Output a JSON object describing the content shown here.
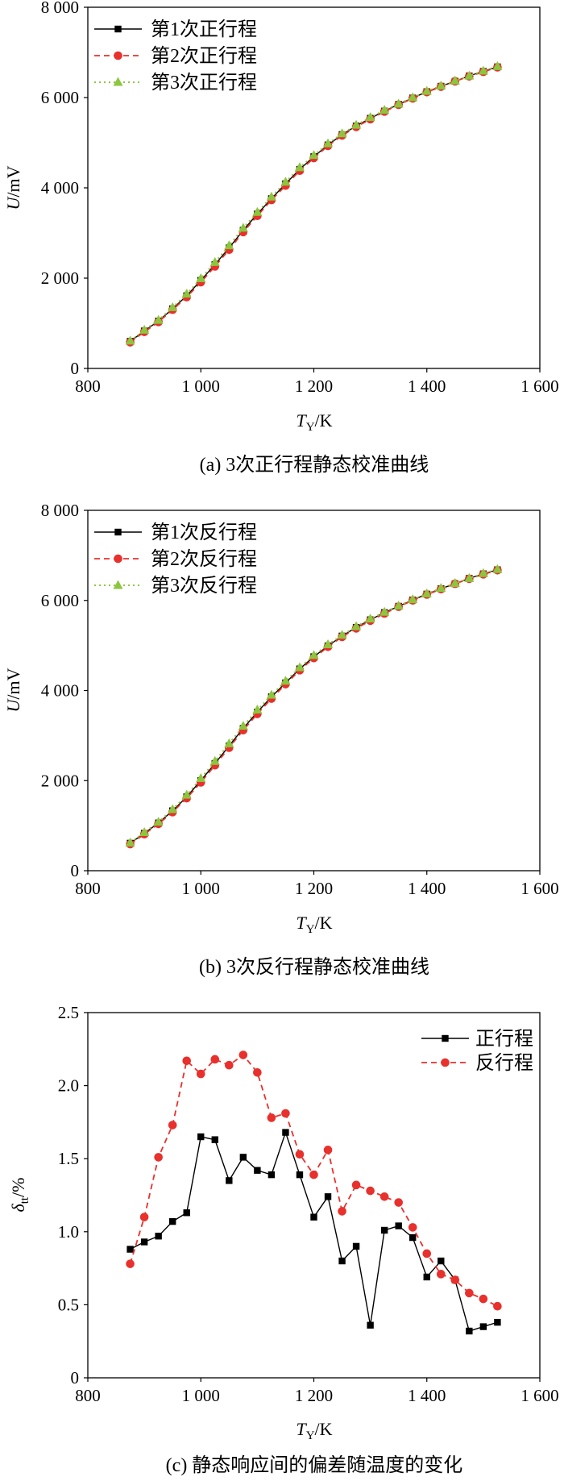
{
  "chart_data": [
    {
      "type": "line",
      "caption": "(a) 3次正行程静态校准曲线",
      "xlabel": {
        "main": "T",
        "sub": "Y",
        "rest": "/K"
      },
      "ylabel": {
        "main": "U",
        "rest": "/mV"
      },
      "xlim": [
        800,
        1600
      ],
      "ylim": [
        0,
        8000
      ],
      "x_ticks": [
        800,
        1000,
        1200,
        1400,
        1600
      ],
      "x_tick_labels": [
        "800",
        "1 000",
        "1 200",
        "1 400",
        "1 600"
      ],
      "y_ticks": [
        0,
        2000,
        4000,
        6000,
        8000
      ],
      "y_tick_labels": [
        "0",
        "2 000",
        "4 000",
        "6 000",
        "8 000"
      ],
      "grid": false,
      "legend_position": "top-left",
      "x": [
        875,
        900,
        925,
        950,
        975,
        1000,
        1025,
        1050,
        1075,
        1100,
        1125,
        1150,
        1175,
        1200,
        1225,
        1250,
        1275,
        1300,
        1325,
        1350,
        1375,
        1400,
        1425,
        1450,
        1475,
        1500,
        1525
      ],
      "series": [
        {
          "name": "第1次正行程",
          "color": "#000000",
          "marker": "square",
          "line_style": "solid",
          "values": [
            600,
            830,
            1050,
            1320,
            1610,
            1950,
            2300,
            2670,
            3060,
            3420,
            3760,
            4090,
            4410,
            4690,
            4950,
            5180,
            5370,
            5540,
            5700,
            5850,
            5990,
            6130,
            6250,
            6360,
            6480,
            6580,
            6680
          ]
        },
        {
          "name": "第2次正行程",
          "color": "#e8302c",
          "marker": "circle",
          "line_style": "dashed",
          "values": [
            580,
            810,
            1030,
            1300,
            1580,
            1910,
            2260,
            2630,
            3020,
            3380,
            3730,
            4050,
            4380,
            4660,
            4930,
            5160,
            5350,
            5520,
            5690,
            5840,
            5980,
            6120,
            6240,
            6360,
            6470,
            6570,
            6670
          ]
        },
        {
          "name": "第3次正行程",
          "color": "#8cc63e",
          "marker": "triangle",
          "line_style": "dotted",
          "values": [
            610,
            850,
            1070,
            1350,
            1650,
            1990,
            2350,
            2720,
            3110,
            3460,
            3800,
            4130,
            4450,
            4720,
            4980,
            5200,
            5390,
            5560,
            5720,
            5860,
            6000,
            6140,
            6260,
            6370,
            6480,
            6590,
            6690
          ]
        }
      ]
    },
    {
      "type": "line",
      "caption": "(b) 3次反行程静态校准曲线",
      "xlabel": {
        "main": "T",
        "sub": "Y",
        "rest": "/K"
      },
      "ylabel": {
        "main": "U",
        "rest": "/mV"
      },
      "xlim": [
        800,
        1600
      ],
      "ylim": [
        0,
        8000
      ],
      "x_ticks": [
        800,
        1000,
        1200,
        1400,
        1600
      ],
      "x_tick_labels": [
        "800",
        "1 000",
        "1 200",
        "1 400",
        "1 600"
      ],
      "y_ticks": [
        0,
        2000,
        4000,
        6000,
        8000
      ],
      "y_tick_labels": [
        "0",
        "2 000",
        "4 000",
        "6 000",
        "8 000"
      ],
      "grid": false,
      "legend_position": "top-left",
      "x": [
        875,
        900,
        925,
        950,
        975,
        1000,
        1025,
        1050,
        1075,
        1100,
        1125,
        1150,
        1175,
        1200,
        1225,
        1250,
        1275,
        1300,
        1325,
        1350,
        1375,
        1400,
        1425,
        1450,
        1475,
        1500,
        1525
      ],
      "series": [
        {
          "name": "第1次反行程",
          "color": "#000000",
          "marker": "square",
          "line_style": "solid",
          "values": [
            610,
            830,
            1060,
            1330,
            1640,
            2000,
            2380,
            2770,
            3160,
            3520,
            3860,
            4170,
            4480,
            4750,
            4990,
            5210,
            5400,
            5570,
            5730,
            5870,
            6010,
            6140,
            6260,
            6370,
            6490,
            6590,
            6680
          ]
        },
        {
          "name": "第2次反行程",
          "color": "#e8302c",
          "marker": "circle",
          "line_style": "dashed",
          "values": [
            590,
            810,
            1040,
            1300,
            1610,
            1960,
            2340,
            2730,
            3120,
            3480,
            3820,
            4140,
            4450,
            4720,
            4970,
            5190,
            5380,
            5550,
            5710,
            5860,
            6000,
            6130,
            6250,
            6370,
            6480,
            6580,
            6670
          ]
        },
        {
          "name": "第3次反行程",
          "color": "#8cc63e",
          "marker": "triangle",
          "line_style": "dotted",
          "values": [
            620,
            850,
            1080,
            1360,
            1680,
            2050,
            2430,
            2820,
            3210,
            3570,
            3900,
            4210,
            4510,
            4780,
            5020,
            5230,
            5420,
            5590,
            5740,
            5880,
            6020,
            6150,
            6270,
            6380,
            6490,
            6600,
            6690
          ]
        }
      ]
    },
    {
      "type": "line",
      "caption": "(c) 静态响应间的偏差随温度的变化",
      "xlabel": {
        "main": "T",
        "sub": "Y",
        "rest": "/K"
      },
      "ylabel": {
        "main": "δ",
        "sub": "tt",
        "rest": "/%"
      },
      "xlim": [
        800,
        1600
      ],
      "ylim": [
        0,
        2.5
      ],
      "x_ticks": [
        800,
        1000,
        1200,
        1400,
        1600
      ],
      "x_tick_labels": [
        "800",
        "1 000",
        "1 200",
        "1 400",
        "1 600"
      ],
      "y_ticks": [
        0,
        0.5,
        1.0,
        1.5,
        2.0,
        2.5
      ],
      "y_tick_labels": [
        "0",
        "0.5",
        "1.0",
        "1.5",
        "2.0",
        "2.5"
      ],
      "grid": false,
      "legend_position": "top-right",
      "x": [
        875,
        900,
        925,
        950,
        975,
        1000,
        1025,
        1050,
        1075,
        1100,
        1125,
        1150,
        1175,
        1200,
        1225,
        1250,
        1275,
        1300,
        1325,
        1350,
        1375,
        1400,
        1425,
        1450,
        1475,
        1500,
        1525
      ],
      "series": [
        {
          "name": "正行程",
          "color": "#000000",
          "marker": "square",
          "line_style": "solid",
          "values": [
            0.88,
            0.93,
            0.97,
            1.07,
            1.13,
            1.65,
            1.63,
            1.35,
            1.51,
            1.42,
            1.39,
            1.68,
            1.39,
            1.1,
            1.24,
            0.8,
            0.9,
            0.36,
            1.01,
            1.04,
            0.96,
            0.69,
            0.8,
            0.67,
            0.32,
            0.35,
            0.38
          ]
        },
        {
          "name": "反行程",
          "color": "#e8302c",
          "marker": "circle",
          "line_style": "dashed",
          "values": [
            0.78,
            1.1,
            1.51,
            1.73,
            2.17,
            2.08,
            2.18,
            2.14,
            2.21,
            2.09,
            1.78,
            1.81,
            1.53,
            1.39,
            1.56,
            1.14,
            1.32,
            1.28,
            1.24,
            1.2,
            1.03,
            0.85,
            0.71,
            0.67,
            0.58,
            0.54,
            0.49
          ]
        }
      ]
    }
  ]
}
